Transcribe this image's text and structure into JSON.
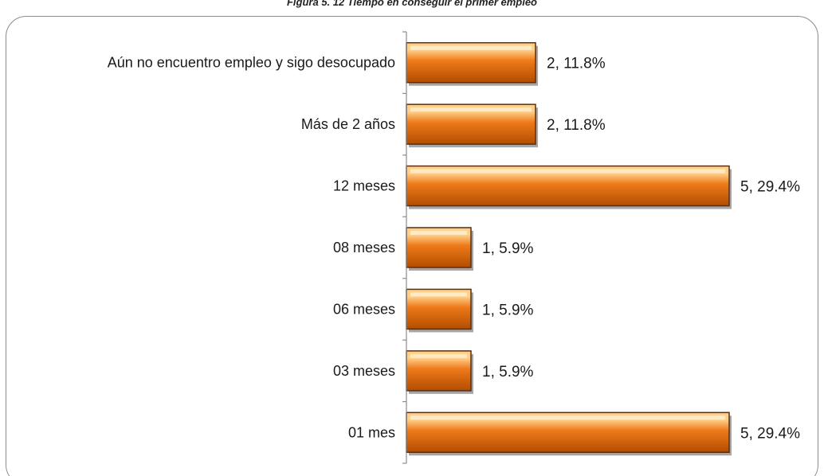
{
  "figure": {
    "caption": "Figura 5. 12 Tiempo en conseguir el primer empleo"
  },
  "chart_data": {
    "type": "bar",
    "orientation": "horizontal",
    "title": "",
    "xlabel": "",
    "ylabel": "",
    "categories": [
      "Aún no encuentro empleo y sigo desocupado",
      "Más de 2 años",
      "12 meses",
      "08 meses",
      "06 meses",
      "03 meses",
      "01 mes"
    ],
    "values": [
      2,
      2,
      5,
      1,
      1,
      1,
      5
    ],
    "percentages": [
      "11.8%",
      "11.8%",
      "29.4%",
      "5.9%",
      "5.9%",
      "5.9%",
      "29.4%"
    ],
    "data_labels": [
      "2, 11.8%",
      "2, 11.8%",
      "5, 29.4%",
      "1, 5.9%",
      "1, 5.9%",
      "1, 5.9%",
      "5, 29.4%"
    ],
    "xlim": [
      0,
      5
    ],
    "grid": false,
    "legend": "none",
    "colors": {
      "bar": "#ee7a1a",
      "bar_light": "#ffd08a",
      "bar_dark": "#b24d00",
      "bar_edge": "#5a2f10",
      "axis": "#8c8c8c"
    }
  }
}
